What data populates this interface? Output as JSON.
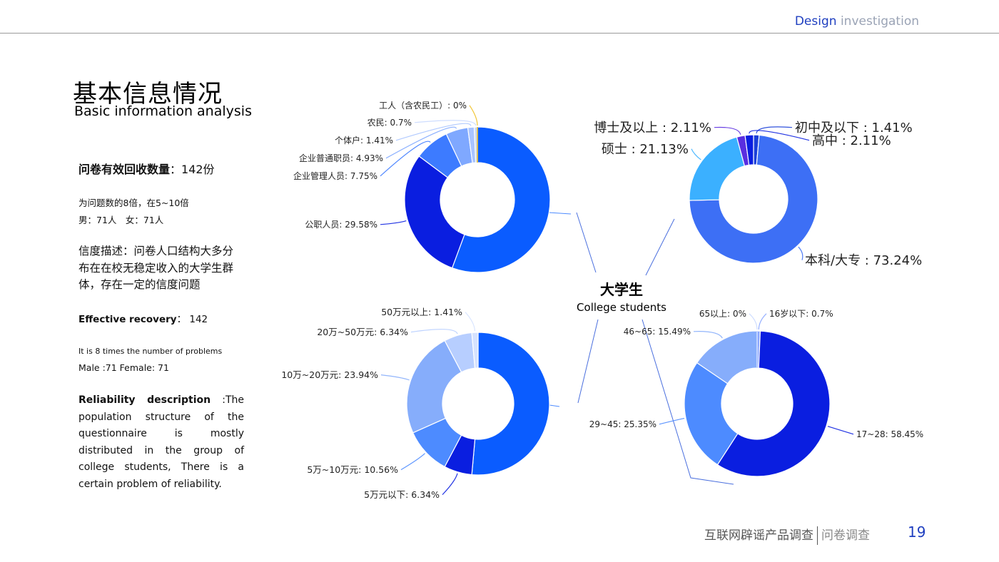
{
  "header": {
    "label_blue": "Design",
    "label_gray": "investigation"
  },
  "title": {
    "cn": "基本信息情况",
    "en": "Basic information analysis"
  },
  "left": {
    "recovery_cn_label": "问卷有效回收数量",
    "recovery_cn_value": "：142份",
    "ratio_cn": "为问题数的8倍，在5~10倍",
    "gender_cn": "男：71人　女：71人",
    "reliability_cn": "信度描述：问卷人口结构大多分布在在校无稳定收入的大学生群体，存在一定的信度问题",
    "recovery_en_label": "Effective recovery",
    "recovery_en_value": "： 142",
    "ratio_en": "It is 8 times the number of problems",
    "gender_en": "Male :71  Female: 71",
    "reliability_en_label": "Reliability description",
    "reliability_en_text": " :The population structure of the questionnaire is mostly distributed in the group of college students, There is a certain problem of reliability."
  },
  "center": {
    "cn": "大学生",
    "en": "College students"
  },
  "footer": {
    "text": "互联网辟谣产品调查",
    "tail": "问卷调查",
    "page": "19"
  },
  "chart_data": [
    {
      "type": "pie",
      "subtype": "donut",
      "topic": "occupation",
      "slices": [
        {
          "label": "",
          "value": 55.63,
          "color": "#0a5cff"
        },
        {
          "label": "公职人员: 29.58%",
          "value": 29.58,
          "color": "#0a1ee0"
        },
        {
          "label": "企业管理人员: 7.75%",
          "value": 7.75,
          "color": "#3d7bff"
        },
        {
          "label": "企业普通职员: 4.93%",
          "value": 4.93,
          "color": "#7fa8ff"
        },
        {
          "label": "个体户: 1.41%",
          "value": 1.41,
          "color": "#a9c4ff"
        },
        {
          "label": "农民: 0.7%",
          "value": 0.7,
          "color": "#c9d9ff"
        },
        {
          "label": "工人（含农民工）: 0%",
          "value": 0,
          "color": "#f0c020"
        }
      ]
    },
    {
      "type": "pie",
      "subtype": "donut",
      "topic": "education",
      "slices": [
        {
          "label": "初中及以下 : 1.41%",
          "value": 1.41,
          "color": "#1a3fd8"
        },
        {
          "label": "本科/大专 : 73.24%",
          "value": 73.24,
          "color": "#3d6ff5"
        },
        {
          "label": "硕士 : 21.13%",
          "value": 21.13,
          "color": "#3bb0ff"
        },
        {
          "label": "博士及以上 : 2.11%",
          "value": 2.11,
          "color": "#5a2ee0"
        },
        {
          "label": "高中 : 2.11%",
          "value": 2.11,
          "color": "#0a1ee0"
        }
      ]
    },
    {
      "type": "pie",
      "subtype": "donut",
      "topic": "income",
      "slices": [
        {
          "label": "",
          "value": 51.41,
          "color": "#0a5cff"
        },
        {
          "label": "5万元以下: 6.34%",
          "value": 6.34,
          "color": "#0a1ee0"
        },
        {
          "label": "5万~10万元: 10.56%",
          "value": 10.56,
          "color": "#4d8bff"
        },
        {
          "label": "10万~20万元: 23.94%",
          "value": 23.94,
          "color": "#86adfb"
        },
        {
          "label": "20万~50万元: 6.34%",
          "value": 6.34,
          "color": "#b7ceff"
        },
        {
          "label": "50万元以上: 1.41%",
          "value": 1.41,
          "color": "#d5e2ff"
        }
      ]
    },
    {
      "type": "pie",
      "subtype": "donut",
      "topic": "age",
      "slices": [
        {
          "label": "16岁以下: 0.7%",
          "value": 0.7,
          "color": "#8aa6ff"
        },
        {
          "label": "17~28: 58.45%",
          "value": 58.45,
          "color": "#0a1ee0"
        },
        {
          "label": "29~45: 25.35%",
          "value": 25.35,
          "color": "#4d8bff"
        },
        {
          "label": "46~65: 15.49%",
          "value": 15.49,
          "color": "#86adfb"
        },
        {
          "label": "65以上: 0%",
          "value": 0,
          "color": "#c9d9ff"
        }
      ]
    }
  ]
}
